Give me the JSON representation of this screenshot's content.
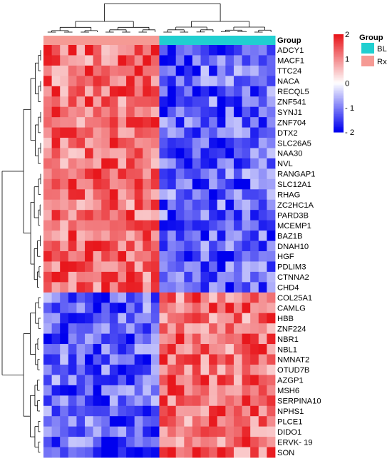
{
  "chart_data": {
    "type": "heatmap",
    "annotation_title": "Group",
    "legend": {
      "color_scale": {
        "min": -2,
        "max": 2,
        "ticks": [
          2,
          1,
          0,
          -1,
          -2
        ],
        "tick_labels": [
          "2",
          "1",
          "0",
          "- 1",
          "- 2"
        ],
        "low_color": "#0000ee",
        "mid_color": "#ffffff",
        "high_color": "#e8171c"
      },
      "group_title": "Group",
      "groups": [
        {
          "label": "BL",
          "color": "#20cfd0"
        },
        {
          "label": "Rx",
          "color": "#f59a94"
        }
      ]
    },
    "columns": {
      "count": 28,
      "groups": [
        "Rx",
        "Rx",
        "Rx",
        "Rx",
        "Rx",
        "Rx",
        "Rx",
        "Rx",
        "Rx",
        "Rx",
        "Rx",
        "Rx",
        "Rx",
        "Rx",
        "BL",
        "BL",
        "BL",
        "BL",
        "BL",
        "BL",
        "BL",
        "BL",
        "BL",
        "BL",
        "BL",
        "BL",
        "BL",
        "BL"
      ]
    },
    "rows": [
      "ADCY1",
      "MACF1",
      "TTC24",
      "NACA",
      "RECQL5",
      "ZNF541",
      "SYNJ1",
      "ZNF704",
      "DTX2",
      "SLC26A5",
      "NAA30",
      "NVL",
      "RANGAP1",
      "SLC12A1",
      "RHAG",
      "ZC2HC1A",
      "PARD3B",
      "MCEMP1",
      "BAZ1B",
      "DNAH10",
      "HGF",
      "PDLIM3",
      "CTNNA2",
      "CHD4",
      "COL25A1",
      "CAMLG",
      "HBB",
      "ZNF224",
      "NBR1",
      "NBL1",
      "NMNAT2",
      "OTUD7B",
      "AZGP1",
      "MSH6",
      "SERPINA10",
      "NPHS1",
      "PLCE1",
      "DIDO1",
      "ERVK- 19",
      "SON"
    ],
    "row_clusters": [
      {
        "rows": [
          "ADCY1",
          "MACF1",
          "TTC24",
          "NACA",
          "RECQL5",
          "ZNF541",
          "SYNJ1",
          "ZNF704",
          "DTX2",
          "SLC26A5",
          "NAA30",
          "NVL",
          "RANGAP1",
          "SLC12A1",
          "RHAG",
          "ZC2HC1A",
          "PARD3B",
          "MCEMP1",
          "BAZ1B",
          "DNAH10",
          "HGF",
          "PDLIM3",
          "CTNNA2",
          "CHD4"
        ],
        "pattern": "high in Rx (~1.2), low in BL (~-1.2)"
      },
      {
        "rows": [
          "COL25A1",
          "CAMLG",
          "HBB",
          "ZNF224",
          "NBR1",
          "NBL1",
          "NMNAT2",
          "OTUD7B",
          "AZGP1",
          "MSH6",
          "SERPINA10",
          "NPHS1",
          "PLCE1",
          "DIDO1",
          "ERVK- 19",
          "SON"
        ],
        "pattern": "low in Rx (~-1.2), high in BL (~1.2)"
      }
    ],
    "value_range": [
      -2,
      2
    ]
  }
}
